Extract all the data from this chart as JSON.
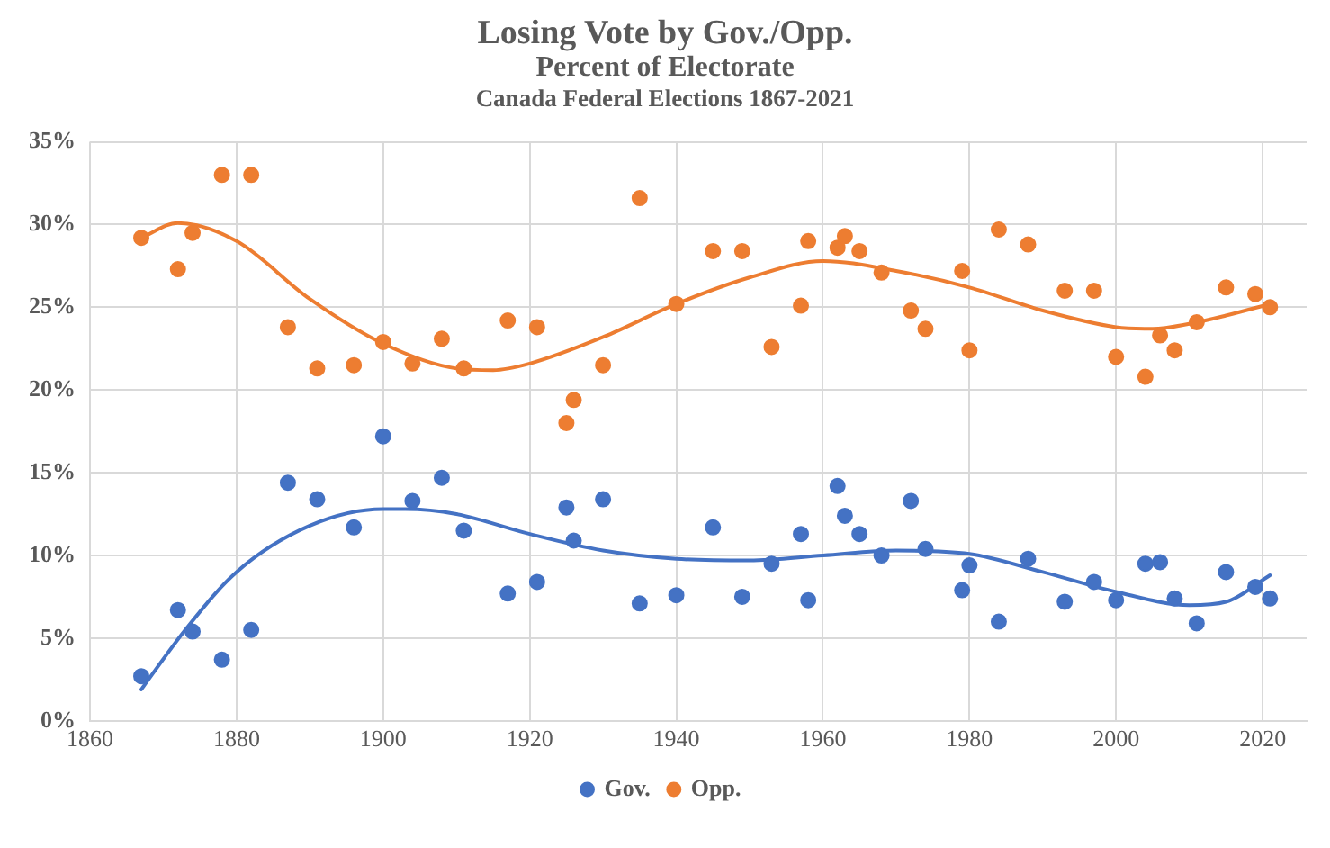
{
  "chart_data": {
    "type": "scatter",
    "title": "Losing Vote by Gov./Opp.",
    "subtitle": "Percent of Electorate",
    "annotations": [
      "Canada Federal Elections 1867-2021"
    ],
    "xlim": [
      1860,
      2026
    ],
    "xticks": [
      1860,
      1880,
      1900,
      1920,
      1940,
      1960,
      1980,
      2000,
      2020
    ],
    "ylim": [
      0,
      35
    ],
    "yticks": [
      {
        "value": 0,
        "label": "0%"
      },
      {
        "value": 5,
        "label": "5%"
      },
      {
        "value": 10,
        "label": "10%"
      },
      {
        "value": 15,
        "label": "15%"
      },
      {
        "value": 20,
        "label": "20%"
      },
      {
        "value": 25,
        "label": "25%"
      },
      {
        "value": 30,
        "label": "30%"
      },
      {
        "value": 35,
        "label": "35%"
      }
    ],
    "grid": true,
    "legend": "bottom",
    "marker": "circle",
    "series": [
      {
        "name": "Gov.",
        "color": "#4472c4",
        "x": [
          1867,
          1872,
          1874,
          1878,
          1882,
          1887,
          1891,
          1896,
          1900,
          1904,
          1908,
          1911,
          1917,
          1921,
          1925,
          1926,
          1930,
          1935,
          1940,
          1945,
          1949,
          1953,
          1957,
          1958,
          1962,
          1963,
          1965,
          1968,
          1972,
          1974,
          1979,
          1980,
          1984,
          1988,
          1993,
          1997,
          2000,
          2004,
          2006,
          2008,
          2011,
          2015,
          2019,
          2021
        ],
        "values": [
          2.7,
          6.7,
          5.4,
          3.7,
          5.5,
          14.4,
          13.4,
          11.7,
          17.2,
          13.3,
          14.7,
          11.5,
          7.7,
          8.4,
          12.9,
          10.9,
          13.4,
          7.1,
          7.6,
          11.7,
          7.5,
          9.5,
          11.3,
          7.3,
          14.2,
          12.4,
          11.3,
          10.0,
          13.3,
          10.4,
          7.9,
          9.4,
          6.0,
          9.8,
          7.2,
          8.4,
          7.3,
          9.5,
          9.6,
          7.4,
          5.9,
          9.0,
          8.1,
          7.4
        ]
      },
      {
        "name": "Opp.",
        "color": "#ed7d31",
        "x": [
          1867,
          1872,
          1874,
          1878,
          1882,
          1887,
          1891,
          1896,
          1900,
          1904,
          1908,
          1911,
          1917,
          1921,
          1925,
          1926,
          1930,
          1935,
          1940,
          1945,
          1949,
          1953,
          1957,
          1958,
          1962,
          1963,
          1965,
          1968,
          1972,
          1974,
          1979,
          1980,
          1984,
          1988,
          1993,
          1997,
          2000,
          2004,
          2006,
          2008,
          2011,
          2015,
          2019,
          2021
        ],
        "values": [
          29.2,
          27.3,
          29.5,
          33.0,
          33.0,
          23.8,
          21.3,
          21.5,
          22.9,
          21.6,
          23.1,
          21.3,
          24.2,
          23.8,
          18.0,
          19.4,
          21.5,
          31.6,
          25.2,
          28.4,
          28.4,
          22.6,
          25.1,
          29.0,
          28.6,
          29.3,
          28.4,
          27.1,
          24.8,
          23.7,
          27.2,
          22.4,
          29.7,
          28.8,
          26.0,
          26.0,
          22.0,
          20.8,
          23.3,
          22.4,
          24.1,
          26.2,
          25.8,
          25.0
        ]
      },
      {
        "type": "line",
        "marker": "none",
        "color": "#4472c4",
        "x": [
          1867,
          1873,
          1880,
          1890,
          1900,
          1903,
          1910,
          1920,
          1930,
          1940,
          1950,
          1960,
          1970,
          1980,
          1990,
          2000,
          2010,
          2015,
          2021
        ],
        "values": [
          1.9,
          5.5,
          9.0,
          11.8,
          12.8,
          12.8,
          12.5,
          11.3,
          10.3,
          9.8,
          9.7,
          10.0,
          10.3,
          10.1,
          9.0,
          7.8,
          7.0,
          7.2,
          8.8
        ]
      },
      {
        "type": "line",
        "marker": "none",
        "color": "#ed7d31",
        "x": [
          1867,
          1872,
          1880,
          1890,
          1900,
          1910,
          1915,
          1920,
          1930,
          1940,
          1950,
          1960,
          1970,
          1980,
          1990,
          2000,
          2005,
          2010,
          2015,
          2021
        ],
        "values": [
          29.2,
          30.1,
          29.0,
          25.5,
          22.8,
          21.3,
          21.2,
          21.6,
          23.2,
          25.2,
          26.8,
          27.8,
          27.2,
          26.2,
          24.8,
          23.8,
          23.7,
          24.0,
          24.5,
          25.2
        ]
      }
    ]
  }
}
